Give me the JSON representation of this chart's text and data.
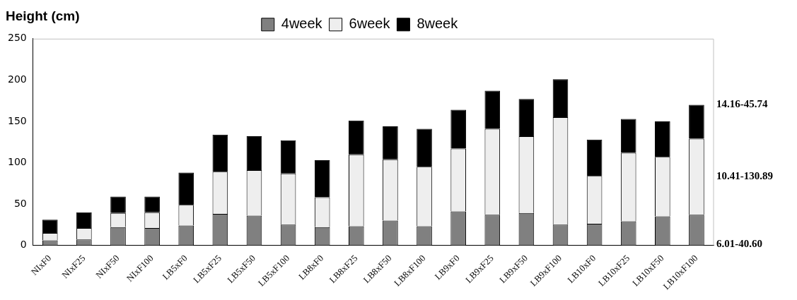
{
  "chart_data": {
    "type": "bar",
    "title": "Height (cm)",
    "stacked": true,
    "categories": [
      "NIxF0",
      "NIxF25",
      "NIxF50",
      "NIxF100",
      "LB5xF0",
      "LB5xF25",
      "LB5xF50",
      "LB5xF100",
      "LB8xF0",
      "LB8xF25",
      "LB8xF50",
      "LB8xF100",
      "LB9xF0",
      "LB9xF25",
      "LB9xF50",
      "LB9xF100",
      "LB10xF0",
      "LB10xF25",
      "LB10xF50",
      "LB10xF100"
    ],
    "series": [
      {
        "name": "4week",
        "color": "#808080",
        "values": [
          6,
          7,
          22,
          21,
          24,
          38,
          36,
          25,
          22,
          23,
          30,
          23,
          41,
          37,
          39,
          25,
          26,
          29,
          35,
          37
        ]
      },
      {
        "name": "6week",
        "color": "#eeeeee",
        "values": [
          9,
          14,
          17,
          19,
          25,
          51,
          55,
          62,
          36,
          87,
          74,
          72,
          76,
          104,
          93,
          130,
          58,
          83,
          72,
          92
        ]
      },
      {
        "name": "8week",
        "color": "#000000",
        "values": [
          16,
          19,
          20,
          19,
          39,
          45,
          41,
          40,
          45,
          41,
          40,
          46,
          47,
          46,
          45,
          46,
          44,
          41,
          43,
          41
        ]
      }
    ],
    "ylim": [
      0,
      250
    ],
    "yticks": [
      0,
      50,
      100,
      150,
      200,
      250
    ],
    "grid": false,
    "legend": "top",
    "annotations": [
      "14.16-45.74",
      "10.41-130.89",
      "6.01-40.60"
    ]
  }
}
